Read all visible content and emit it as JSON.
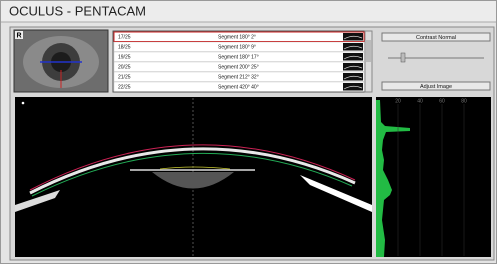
{
  "header": {
    "title": "OCULUS - PENTACAM"
  },
  "eye_panel": {
    "label": "R"
  },
  "segment_list": {
    "rows": [
      {
        "id": "17/25",
        "segment": "Segment 180° 2°"
      },
      {
        "id": "18/25",
        "segment": "Segment 180° 9°"
      },
      {
        "id": "19/25",
        "segment": "Segment 180° 17°"
      },
      {
        "id": "20/25",
        "segment": "Segment 200° 25°"
      },
      {
        "id": "21/25",
        "segment": "Segment 212° 32°"
      },
      {
        "id": "22/25",
        "segment": "Segment 420° 40°"
      }
    ]
  },
  "controls": {
    "contrast_button": "Contrast Normal",
    "adjust_button": "Adjust Image"
  },
  "histogram": {
    "axis_labels": [
      "20",
      "40",
      "60",
      "80"
    ]
  }
}
